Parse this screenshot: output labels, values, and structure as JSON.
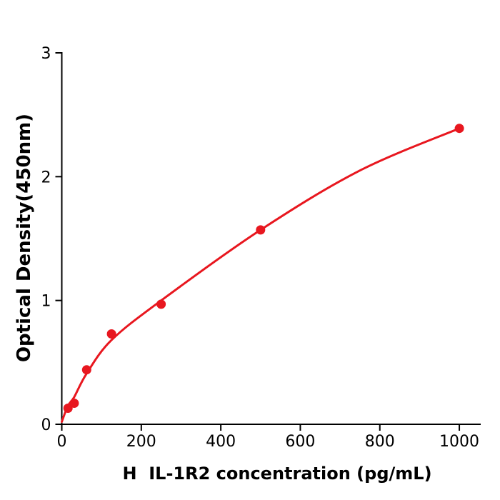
{
  "figure": {
    "background": "#ffffff",
    "description": "ELISA standard curve scatter plot with fitted line"
  },
  "colors": {
    "accent": "#e8171f",
    "axis": "#000000",
    "background": "#ffffff"
  },
  "chart_data": {
    "type": "scatter",
    "title": "",
    "xlabel": "H  IL-1R2 concentration (pg/mL)",
    "ylabel": "Optical Density(450nm)",
    "xlim": [
      0,
      1052
    ],
    "ylim": [
      0,
      3
    ],
    "x_ticks": [
      0,
      200,
      400,
      600,
      800,
      1000
    ],
    "x_tick_labels": [
      "0",
      "200",
      "400",
      "600",
      "800",
      "1000"
    ],
    "y_ticks": [
      0,
      1,
      2,
      3
    ],
    "y_tick_labels": [
      "0",
      "1",
      "2",
      "3"
    ],
    "grid": false,
    "legend_position": "none",
    "series": [
      {
        "name": "standard-points",
        "type": "scatter",
        "color": "#e8171f",
        "marker": "circle",
        "marker_radius": 6.5,
        "x": [
          15.6,
          31.25,
          62.5,
          125,
          250,
          500,
          1000
        ],
        "y": [
          0.13,
          0.17,
          0.44,
          0.73,
          0.97,
          1.57,
          2.39
        ]
      },
      {
        "name": "fitted-curve",
        "type": "line",
        "color": "#e8171f",
        "stroke_width": 3,
        "x": [
          0,
          15.6,
          31.25,
          62.5,
          125,
          250,
          500,
          750,
          1000
        ],
        "y": [
          0.02,
          0.15,
          0.22,
          0.41,
          0.68,
          1.0,
          1.57,
          2.05,
          2.39
        ]
      }
    ]
  }
}
